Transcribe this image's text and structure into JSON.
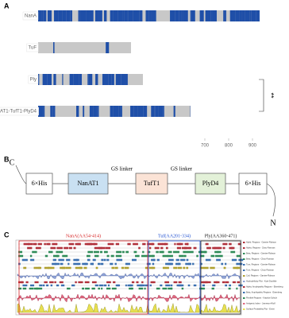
{
  "chart_data": {
    "type": "bar",
    "orientation": "horizontal",
    "panel_label": "A",
    "categories": [
      "NanA",
      "TuF",
      "Ply",
      "NanAT1-TufT1-PlyD4"
    ],
    "values": [
      930,
      390,
      440,
      640
    ],
    "color": "#1f4fa8",
    "background_color": "#c8c8c8",
    "xlim": [
      0,
      1000
    ],
    "xticks": [
      700,
      800,
      900
    ],
    "annotation": "**"
  },
  "diagram": {
    "panel_label": "B",
    "c_terminal": "C",
    "n_terminal": "N",
    "nodes": [
      {
        "label": "6×His",
        "color": "#ffffff"
      },
      {
        "label": "NanAT1",
        "color": "#c9e0f2"
      },
      {
        "label": "TufT1",
        "color": "#fbe3d6"
      },
      {
        "label": "PlyD4",
        "color": "#e3f1d8"
      },
      {
        "label": "6×His",
        "color": "#ffffff"
      }
    ],
    "linkers": [
      "GS linker",
      "GS linker"
    ]
  },
  "tracks": {
    "panel_label": "C",
    "regions": [
      {
        "label": "NanA(AA54-414)",
        "color": "#d62728"
      },
      {
        "label": "Tuf(AA201-334)",
        "color": "#1f4fd0"
      },
      {
        "label": "Ply(AA360-471)",
        "color": "#222222"
      }
    ],
    "legend": [
      "Hphb. Regions - Garnier-Robson",
      "Alpha, Regions - Chou-Fasman",
      "Beta, Regions - Garnier-Robson",
      "Beta, Regions - Chou-Fasman",
      "Turn, Regions - Garnier-Robson",
      "Turn, Regions - Chou-Fasman",
      "Coil, Regions - Garnier-Robson",
      "Hydrophilicity Plot - Kyte-Doolittle",
      "Alpha, Amphipathic Regions - Eisenberg",
      "Beta, Amphipathic Regions - Eisenberg",
      "Flexible Regions - Karplus-Schulz",
      "Antigenic Index - Jameson-Wolf",
      "Surface Probability Plot - Emini"
    ]
  }
}
